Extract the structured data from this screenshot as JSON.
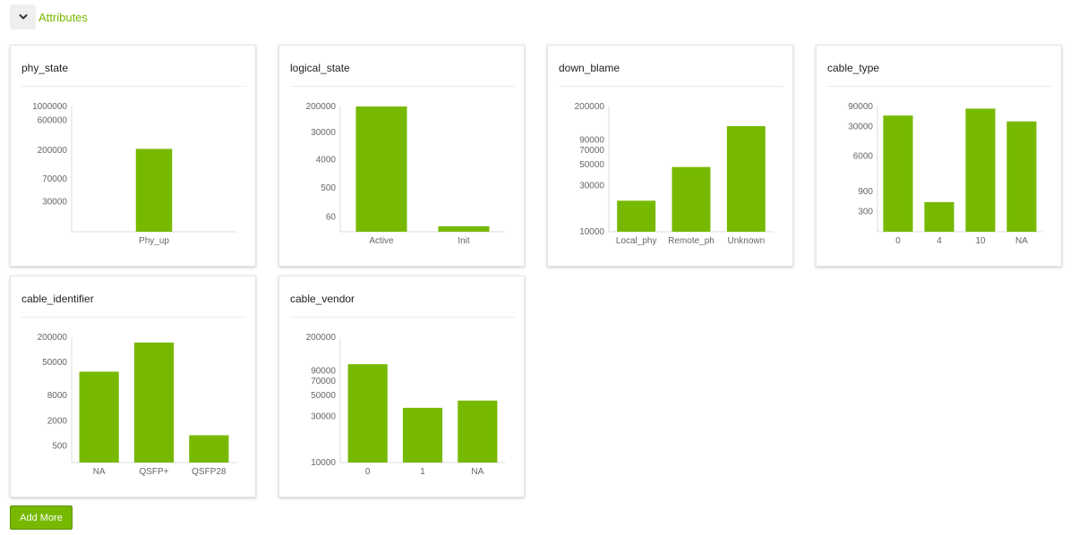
{
  "section": {
    "title": "Attributes"
  },
  "colors": {
    "accent": "#76b900",
    "bar": "#76b900",
    "axis": "#dcdcdc",
    "tick_text": "#666666"
  },
  "actions": {
    "add_more_label": "Add More"
  },
  "cards": [
    {
      "title": "phy_state",
      "chart_data": {
        "type": "bar",
        "yscale": "log",
        "ylim": [
          10000,
          1000000
        ],
        "yticks": [
          30000,
          70000,
          200000,
          600000,
          1000000
        ],
        "categories": [
          "Phy_up"
        ],
        "values": [
          210000
        ],
        "bar_fraction": 0.22
      }
    },
    {
      "title": "logical_state",
      "chart_data": {
        "type": "bar",
        "yscale": "log",
        "ylim": [
          20,
          200000
        ],
        "yticks": [
          60,
          500,
          4000,
          30000,
          200000
        ],
        "categories": [
          "Active",
          "Init"
        ],
        "values": [
          200000,
          30
        ],
        "bar_fraction": 0.62
      }
    },
    {
      "title": "down_blame",
      "chart_data": {
        "type": "bar",
        "yscale": "log",
        "ylim": [
          10000,
          200000
        ],
        "yticks": [
          10000,
          30000,
          50000,
          70000,
          90000,
          200000
        ],
        "categories": [
          "Local_phy",
          "Remote_ph",
          "Unknown"
        ],
        "values": [
          21000,
          47000,
          125000
        ],
        "bar_fraction": 0.7
      }
    },
    {
      "title": "cable_type",
      "chart_data": {
        "type": "bar",
        "yscale": "log",
        "ylim": [
          100,
          90000
        ],
        "yticks": [
          300,
          900,
          6000,
          30000,
          90000
        ],
        "categories": [
          "0",
          "4",
          "10",
          "NA"
        ],
        "values": [
          55000,
          500,
          80000,
          40000
        ],
        "bar_fraction": 0.72
      }
    },
    {
      "title": "cable_identifier",
      "chart_data": {
        "type": "bar",
        "yscale": "log",
        "ylim": [
          200,
          200000
        ],
        "yticks": [
          500,
          2000,
          8000,
          50000,
          200000
        ],
        "categories": [
          "NA",
          "QSFP+",
          "QSFP28"
        ],
        "values": [
          30000,
          150000,
          900
        ],
        "bar_fraction": 0.72
      }
    },
    {
      "title": "cable_vendor",
      "chart_data": {
        "type": "bar",
        "yscale": "log",
        "ylim": [
          10000,
          200000
        ],
        "yticks": [
          10000,
          30000,
          50000,
          70000,
          90000,
          200000
        ],
        "categories": [
          "0",
          "1",
          "NA"
        ],
        "values": [
          105000,
          37000,
          44000
        ],
        "bar_fraction": 0.72
      }
    }
  ]
}
